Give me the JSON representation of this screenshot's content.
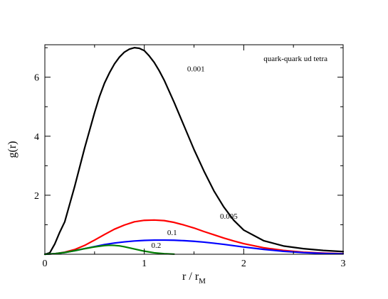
{
  "chart_data": {
    "type": "line",
    "title": "",
    "annotation": "quark-quark ud tetra",
    "xlabel_main": "r / r",
    "xlabel_sub": "M",
    "ylabel": "g(r)",
    "xlim": [
      0,
      3
    ],
    "ylim": [
      0,
      7.1
    ],
    "x_ticks": [
      0,
      1,
      2,
      3
    ],
    "x_tick_labels": [
      "0",
      "1",
      "2",
      "3"
    ],
    "y_ticks": [
      0,
      2,
      4,
      6
    ],
    "y_tick_labels": [
      "",
      "2",
      "4",
      "6"
    ],
    "grid": false,
    "series": [
      {
        "name": "0.001",
        "color": "#000000",
        "x": [
          0,
          0.05,
          0.1,
          0.15,
          0.2,
          0.25,
          0.3,
          0.35,
          0.4,
          0.45,
          0.5,
          0.55,
          0.6,
          0.65,
          0.7,
          0.75,
          0.8,
          0.85,
          0.9,
          0.95,
          1.0,
          1.05,
          1.1,
          1.15,
          1.2,
          1.3,
          1.4,
          1.5,
          1.6,
          1.7,
          1.8,
          1.9,
          2.0,
          2.2,
          2.4,
          2.6,
          2.8,
          3.0
        ],
        "y": [
          0,
          0.05,
          0.35,
          0.75,
          1.1,
          1.7,
          2.3,
          2.95,
          3.6,
          4.2,
          4.8,
          5.35,
          5.8,
          6.15,
          6.45,
          6.68,
          6.85,
          6.95,
          7.0,
          6.98,
          6.9,
          6.72,
          6.5,
          6.22,
          5.9,
          5.15,
          4.35,
          3.55,
          2.82,
          2.15,
          1.6,
          1.15,
          0.82,
          0.46,
          0.28,
          0.19,
          0.13,
          0.09
        ]
      },
      {
        "name": "0.005",
        "color": "#ff0000",
        "x": [
          0,
          0.1,
          0.2,
          0.3,
          0.4,
          0.5,
          0.6,
          0.7,
          0.8,
          0.9,
          1.0,
          1.1,
          1.2,
          1.3,
          1.4,
          1.5,
          1.6,
          1.7,
          1.8,
          1.9,
          2.0,
          2.2,
          2.4,
          2.6,
          2.8,
          3.0
        ],
        "y": [
          0,
          0.02,
          0.07,
          0.16,
          0.3,
          0.48,
          0.67,
          0.85,
          0.99,
          1.1,
          1.15,
          1.16,
          1.14,
          1.08,
          0.99,
          0.89,
          0.77,
          0.66,
          0.55,
          0.45,
          0.36,
          0.22,
          0.13,
          0.07,
          0.04,
          0.02
        ]
      },
      {
        "name": "0.1",
        "color": "#0000ff",
        "x": [
          0,
          0.1,
          0.2,
          0.3,
          0.4,
          0.5,
          0.6,
          0.7,
          0.8,
          0.9,
          1.0,
          1.1,
          1.2,
          1.3,
          1.4,
          1.5,
          1.6,
          1.7,
          1.8,
          1.9,
          2.0,
          2.2,
          2.4,
          2.6,
          2.8,
          3.0
        ],
        "y": [
          0,
          0.02,
          0.06,
          0.12,
          0.19,
          0.26,
          0.33,
          0.38,
          0.42,
          0.45,
          0.47,
          0.48,
          0.48,
          0.475,
          0.46,
          0.44,
          0.41,
          0.375,
          0.335,
          0.29,
          0.245,
          0.165,
          0.1,
          0.055,
          0.027,
          0.013
        ]
      },
      {
        "name": "0.2",
        "color": "#008000",
        "x": [
          0,
          0.1,
          0.2,
          0.3,
          0.4,
          0.5,
          0.6,
          0.65,
          0.7,
          0.75,
          0.8,
          0.9,
          1.0,
          1.1,
          1.2,
          1.3
        ],
        "y": [
          0,
          0.02,
          0.06,
          0.12,
          0.19,
          0.25,
          0.295,
          0.305,
          0.3,
          0.285,
          0.255,
          0.18,
          0.105,
          0.05,
          0.02,
          0.005
        ]
      }
    ],
    "series_labels": [
      {
        "text": "0.001",
        "x": 1.52,
        "y": 6.2
      },
      {
        "text": "0.005",
        "x": 1.85,
        "y": 1.2
      },
      {
        "text": "0.1",
        "x": 1.28,
        "y": 0.65
      },
      {
        "text": "0.2",
        "x": 1.12,
        "y": 0.22
      }
    ]
  }
}
